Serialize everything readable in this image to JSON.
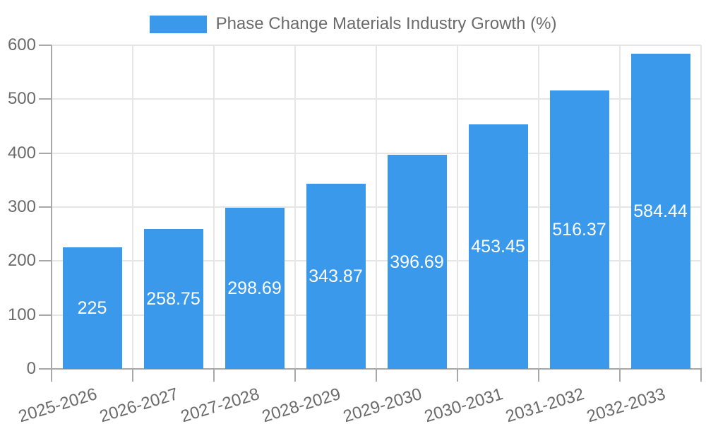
{
  "chart_data": {
    "type": "bar",
    "title": "Phase Change Materials Industry Growth (%)",
    "legend": {
      "position": "top",
      "label": "Phase Change Materials Industry Growth (%)"
    },
    "categories": [
      "2025-2026",
      "2026-2027",
      "2027-2028",
      "2028-2029",
      "2029-2030",
      "2030-2031",
      "2031-2032",
      "2032-2033"
    ],
    "values": [
      225,
      258.75,
      298.69,
      343.87,
      396.69,
      453.45,
      516.37,
      584.44
    ],
    "data_labels": [
      "225",
      "258.75",
      "298.69",
      "343.87",
      "396.69",
      "453.45",
      "516.37",
      "584.44"
    ],
    "xlabel": "",
    "ylabel": "",
    "ylim": [
      0,
      600
    ],
    "yticks": [
      0,
      100,
      200,
      300,
      400,
      500,
      600
    ],
    "grid": "on",
    "colors": {
      "bar": "#3b99ec",
      "bar_label_text": "#ffffff",
      "axis": "#a8a8a8",
      "gridline": "#e6e6e6",
      "tick_text": "#6b6b6b",
      "background": "#ffffff"
    }
  }
}
